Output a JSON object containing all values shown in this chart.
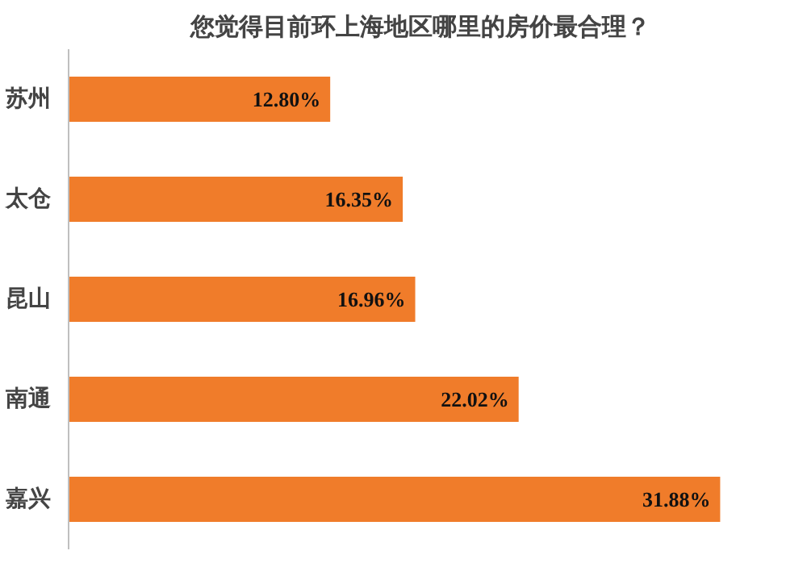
{
  "chart_data": {
    "type": "bar",
    "orientation": "horizontal",
    "title": "您觉得目前环上海地区哪里的房价最合理？",
    "categories": [
      "苏州",
      "太仓",
      "昆山",
      "南通",
      "嘉兴"
    ],
    "values": [
      12.8,
      16.35,
      16.96,
      22.02,
      31.88
    ],
    "value_labels": [
      "12.80%",
      "16.35%",
      "16.96%",
      "22.02%",
      "31.88%"
    ],
    "color": "#f07c2a",
    "grid": false
  }
}
